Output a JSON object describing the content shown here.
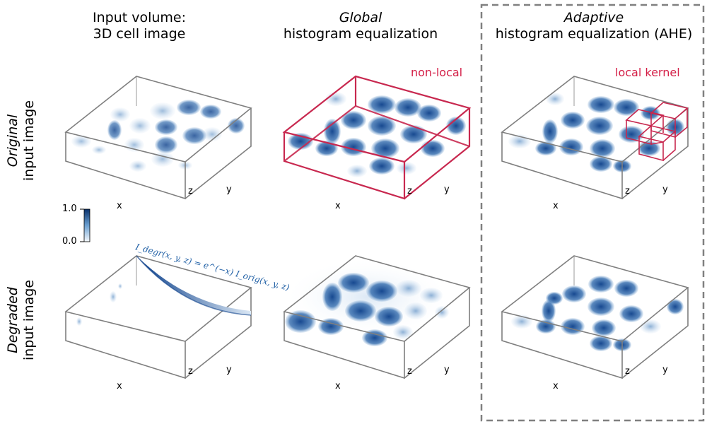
{
  "columns": [
    {
      "title_italic": "",
      "title_line1": "Input volume:",
      "title_line2": "3D cell image"
    },
    {
      "title_italic": "Global",
      "title_line1": "",
      "title_line2": "histogram equalization"
    },
    {
      "title_italic": "Adaptive",
      "title_line1": "",
      "title_line2": "histogram equalization (AHE)"
    }
  ],
  "rows": [
    {
      "italic": "Original",
      "rest": "input image"
    },
    {
      "italic": "Degraded",
      "rest": "input image"
    }
  ],
  "axes": {
    "x": "x",
    "y": "y",
    "z": "z"
  },
  "annotations": {
    "non_local": "non-local",
    "local_kernel": "local kernel"
  },
  "colorbar": {
    "max": "1.0",
    "min": "0.0"
  },
  "formula": "I_degr(x, y, z) = e^(−x) I_orig(x, y, z)",
  "colors": {
    "accent_red": "#c8284f",
    "cell_blue": "#0b3f8a",
    "box_gray": "#7f7f7f",
    "dashed_border": "#808080"
  }
}
